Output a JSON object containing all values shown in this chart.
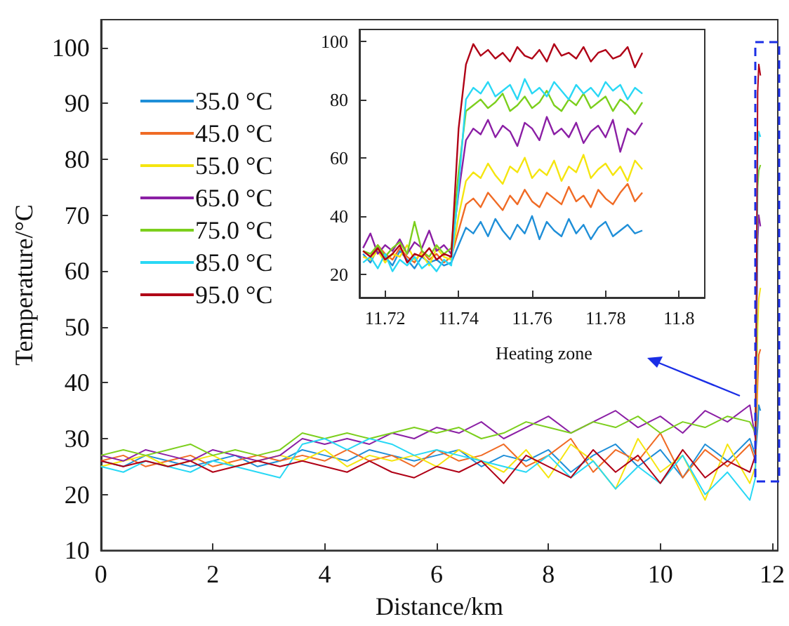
{
  "chart_data": [
    {
      "type": "line",
      "xlabel": "Distance/km",
      "ylabel": "Temperature/°C",
      "xlim": [
        0,
        12.1
      ],
      "ylim": [
        10,
        105
      ],
      "xticks": [
        0,
        2,
        4,
        6,
        8,
        10,
        12
      ],
      "yticks": [
        10,
        20,
        30,
        40,
        50,
        60,
        70,
        80,
        90,
        100
      ],
      "legend": "top left",
      "x": [
        0,
        0.4,
        0.8,
        1.2,
        1.6,
        2,
        2.4,
        2.8,
        3.2,
        3.6,
        4,
        4.4,
        4.8,
        5.2,
        5.6,
        6,
        6.4,
        6.8,
        7.2,
        7.6,
        8,
        8.4,
        8.8,
        9.2,
        9.6,
        10,
        10.4,
        10.8,
        11.2,
        11.6,
        11.7,
        11.74,
        11.76,
        11.79
      ],
      "series": [
        {
          "name": "35.0 °C",
          "color": "#1f8fd8",
          "values": [
            26,
            25,
            27,
            26,
            25,
            26,
            27,
            25,
            26,
            28,
            27,
            26,
            28,
            27,
            26,
            27,
            28,
            25,
            27,
            26,
            28,
            24,
            27,
            29,
            25,
            28,
            23,
            29,
            26,
            30,
            27,
            32,
            36,
            35
          ]
        },
        {
          "name": "45.0 °C",
          "color": "#f06b25",
          "values": [
            26,
            27,
            25,
            26,
            27,
            25,
            26,
            27,
            26,
            27,
            26,
            28,
            26,
            27,
            25,
            28,
            26,
            27,
            29,
            25,
            27,
            30,
            24,
            28,
            26,
            31,
            23,
            28,
            25,
            29,
            26,
            40,
            45,
            46
          ]
        },
        {
          "name": "55.0 °C",
          "color": "#f5e50f",
          "values": [
            25,
            26,
            27,
            25,
            26,
            27,
            25,
            26,
            27,
            26,
            28,
            25,
            27,
            26,
            27,
            25,
            28,
            26,
            24,
            28,
            23,
            29,
            26,
            21,
            30,
            24,
            27,
            19,
            29,
            22,
            25,
            50,
            55,
            57
          ]
        },
        {
          "name": "65.0 °C",
          "color": "#8b1fa5",
          "values": [
            27,
            26,
            28,
            27,
            26,
            28,
            27,
            26,
            27,
            30,
            29,
            30,
            29,
            31,
            30,
            32,
            31,
            33,
            30,
            32,
            34,
            31,
            33,
            35,
            32,
            34,
            31,
            35,
            33,
            36,
            30,
            65,
            70,
            68
          ]
        },
        {
          "name": "75.0 °C",
          "color": "#7ccf1d",
          "values": [
            27,
            28,
            27,
            28,
            29,
            27,
            28,
            27,
            28,
            31,
            30,
            31,
            30,
            31,
            32,
            31,
            32,
            30,
            31,
            33,
            32,
            31,
            33,
            32,
            34,
            31,
            33,
            32,
            34,
            33,
            31,
            75,
            78,
            79
          ]
        },
        {
          "name": "85.0 °C",
          "color": "#29d8f5",
          "values": [
            25,
            24,
            26,
            25,
            24,
            26,
            25,
            24,
            23,
            29,
            30,
            28,
            30,
            29,
            27,
            28,
            27,
            26,
            25,
            24,
            27,
            23,
            26,
            21,
            25,
            22,
            27,
            20,
            24,
            19,
            23,
            80,
            85,
            84
          ]
        },
        {
          "name": "95.0 °C",
          "color": "#b00016",
          "values": [
            26,
            25,
            26,
            25,
            26,
            24,
            25,
            26,
            25,
            26,
            25,
            24,
            26,
            24,
            23,
            25,
            24,
            26,
            22,
            27,
            25,
            23,
            28,
            24,
            27,
            22,
            28,
            23,
            26,
            24,
            27,
            92,
            97,
            95
          ]
        }
      ]
    },
    {
      "type": "line",
      "xlim": [
        11.713,
        11.807
      ],
      "ylim": [
        12,
        104
      ],
      "xticks": [
        11.72,
        11.74,
        11.76,
        11.78,
        11.8
      ],
      "yticks": [
        20,
        40,
        60,
        80,
        100
      ],
      "annotations": [
        "Heating zone"
      ],
      "x": [
        11.714,
        11.716,
        11.718,
        11.72,
        11.722,
        11.724,
        11.726,
        11.728,
        11.73,
        11.732,
        11.734,
        11.736,
        11.738,
        11.74,
        11.742,
        11.744,
        11.746,
        11.748,
        11.75,
        11.752,
        11.754,
        11.756,
        11.758,
        11.76,
        11.762,
        11.764,
        11.766,
        11.768,
        11.77,
        11.772,
        11.774,
        11.776,
        11.778,
        11.78,
        11.782,
        11.784,
        11.786,
        11.788,
        11.79
      ],
      "series": [
        {
          "color": "#1f8fd8",
          "values": [
            27,
            24,
            29,
            26,
            23,
            28,
            25,
            22,
            26,
            24,
            25,
            23,
            24,
            30,
            36,
            34,
            38,
            33,
            39,
            35,
            32,
            37,
            34,
            40,
            32,
            38,
            35,
            33,
            39,
            34,
            37,
            32,
            36,
            38,
            33,
            35,
            37,
            34,
            35
          ]
        },
        {
          "color": "#f06b25",
          "values": [
            28,
            26,
            30,
            27,
            25,
            29,
            26,
            24,
            28,
            25,
            27,
            24,
            26,
            35,
            44,
            46,
            43,
            48,
            45,
            42,
            47,
            44,
            49,
            45,
            43,
            48,
            46,
            44,
            50,
            45,
            47,
            43,
            49,
            46,
            44,
            48,
            51,
            45,
            48
          ]
        },
        {
          "color": "#f5e50f",
          "values": [
            26,
            25,
            28,
            24,
            27,
            26,
            30,
            25,
            27,
            23,
            29,
            26,
            25,
            40,
            52,
            55,
            53,
            58,
            54,
            51,
            57,
            55,
            60,
            53,
            56,
            54,
            59,
            52,
            57,
            55,
            61,
            53,
            56,
            58,
            54,
            57,
            52,
            59,
            56
          ]
        },
        {
          "color": "#8b1fa5",
          "values": [
            29,
            34,
            27,
            30,
            28,
            32,
            27,
            31,
            29,
            35,
            28,
            30,
            27,
            48,
            66,
            70,
            68,
            73,
            67,
            71,
            69,
            64,
            72,
            70,
            66,
            74,
            68,
            70,
            67,
            72,
            65,
            69,
            71,
            67,
            73,
            62,
            70,
            68,
            72
          ]
        },
        {
          "color": "#7ccf1d",
          "values": [
            28,
            27,
            30,
            26,
            29,
            31,
            27,
            38,
            28,
            26,
            30,
            27,
            29,
            55,
            76,
            78,
            80,
            77,
            79,
            82,
            76,
            78,
            81,
            77,
            79,
            83,
            78,
            76,
            80,
            78,
            82,
            77,
            79,
            81,
            76,
            80,
            78,
            75,
            79
          ]
        },
        {
          "color": "#29d8f5",
          "values": [
            24,
            26,
            22,
            27,
            21,
            25,
            23,
            26,
            22,
            24,
            21,
            25,
            23,
            50,
            80,
            84,
            82,
            86,
            81,
            83,
            85,
            80,
            87,
            82,
            84,
            81,
            86,
            83,
            80,
            85,
            82,
            84,
            81,
            86,
            83,
            85,
            80,
            84,
            82
          ]
        },
        {
          "color": "#b00016",
          "values": [
            28,
            26,
            29,
            25,
            27,
            30,
            24,
            27,
            26,
            29,
            25,
            27,
            26,
            70,
            92,
            99,
            95,
            97,
            94,
            96,
            93,
            98,
            95,
            94,
            97,
            93,
            99,
            95,
            96,
            94,
            98,
            93,
            96,
            97,
            94,
            95,
            98,
            91,
            96
          ]
        }
      ]
    }
  ]
}
